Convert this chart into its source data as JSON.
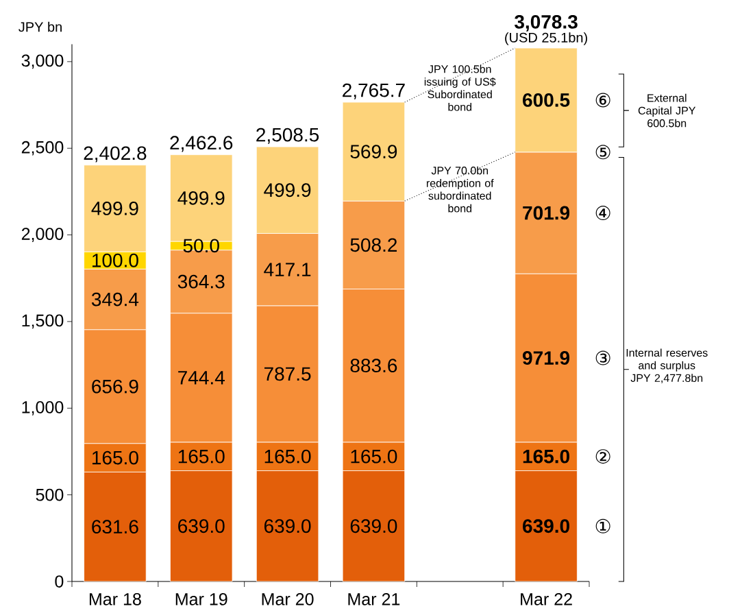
{
  "chart_data": {
    "type": "bar",
    "stacked": true,
    "ylabel": "JPY bn",
    "categories": [
      "Mar 18",
      "Mar 19",
      "Mar 20",
      "Mar 21",
      null,
      "Mar 22"
    ],
    "ylim": [
      0,
      3100
    ],
    "yticks": [
      0,
      500,
      {
        "value": 1000,
        "label": "1,000"
      },
      {
        "value": 1500,
        "label": "1,500"
      },
      {
        "value": 2000,
        "label": "2,000"
      },
      {
        "value": 2500,
        "label": "2,500"
      },
      {
        "value": 3000,
        "label": "3,000"
      }
    ],
    "series": [
      {
        "color": "#e35f0a",
        "values": [
          631.6,
          639.0,
          639.0,
          639.0,
          null,
          639.0
        ],
        "value_labels": [
          "631.6",
          "639.0",
          "639.0",
          "639.0",
          null,
          "639.0"
        ]
      },
      {
        "color": "#ee7414",
        "values": [
          165.0,
          165.0,
          165.0,
          165.0,
          null,
          165.0
        ],
        "value_labels": [
          "165.0",
          "165.0",
          "165.0",
          "165.0",
          null,
          "165.0"
        ]
      },
      {
        "color": "#f68e38",
        "values": [
          656.9,
          744.4,
          787.5,
          883.6,
          null,
          971.9
        ],
        "value_labels": [
          "656.9",
          "744.4",
          "787.5",
          "883.6",
          null,
          "971.9"
        ]
      },
      {
        "color": "#f79c4a",
        "values": [
          349.4,
          364.3,
          417.1,
          508.2,
          null,
          701.9
        ],
        "value_labels": [
          "349.4",
          "364.3",
          "417.1",
          "508.2",
          null,
          "701.9"
        ]
      },
      {
        "color": "#ffd600",
        "values": [
          100.0,
          50.0,
          null,
          null,
          null,
          null
        ],
        "value_labels": [
          "100.0",
          "50.0",
          null,
          null,
          null,
          null
        ]
      },
      {
        "color": "#fdd37a",
        "values": [
          499.9,
          499.9,
          499.9,
          569.9,
          null,
          600.5
        ],
        "value_labels": [
          "499.9",
          "499.9",
          "499.9",
          "569.9",
          null,
          "600.5"
        ]
      }
    ],
    "totals": [
      "2,402.8",
      "2,462.6",
      "2,508.5",
      "2,765.7",
      null,
      "3,078.3"
    ],
    "annotations": [
      {
        "text": "(USD 25.1bn)",
        "x": "Mar 22",
        "y": 3078.3
      },
      "JPY 100.5bn issuing of US$ Subordinated bond",
      "JPY 70.0bn redemption of subordinated bond",
      "①",
      "②",
      "③",
      "④",
      "⑤",
      "⑥",
      "External Capital JPY 600.5bn",
      "Internal reserves and surplus JPY 2,477.8bn"
    ]
  }
}
